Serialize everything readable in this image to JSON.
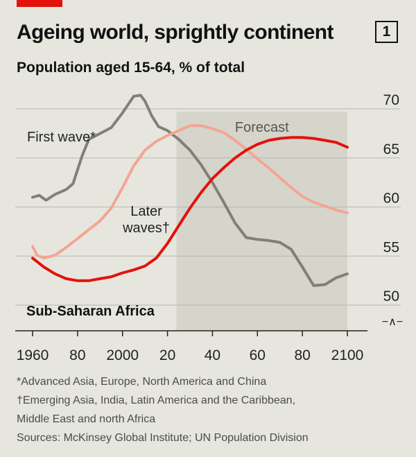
{
  "header": {
    "title": "Ageing world, sprightly continent",
    "chart_number": "1",
    "subtitle": "Population aged 15-64, % of total"
  },
  "colors": {
    "accent": "#e3120b",
    "first_wave": "#808078",
    "later_waves": "#f4a593",
    "sub_saharan_africa": "#e3120b",
    "forecast_band": "#d5d5cc",
    "background": "#e6e6df"
  },
  "notes": {
    "first_wave_note": "*Advanced Asia, Europe, North America and China",
    "later_waves_note_1": "†Emerging Asia, India, Latin America and the Caribbean,",
    "later_waves_note_2": "Middle East and north Africa",
    "sources": "Sources: McKinsey Global Institute; UN Population Division"
  },
  "chart_data": {
    "type": "line",
    "title": "Ageing world, sprightly continent",
    "subtitle": "Population aged 15-64, % of total",
    "x_ticks": [
      1960,
      1980,
      2000,
      2020,
      2040,
      2060,
      2080,
      2100
    ],
    "x_tick_labels": [
      "1960",
      "80",
      "2000",
      "20",
      "40",
      "60",
      "80",
      "2100"
    ],
    "y_ticks": [
      50,
      55,
      60,
      65,
      70
    ],
    "y_tick_labels": [
      "50",
      "55",
      "60",
      "65",
      "70"
    ],
    "xlim": [
      1960,
      2100
    ],
    "ylim": [
      48,
      70
    ],
    "axis_break_symbol": "−∧−",
    "grid": true,
    "forecast": {
      "label": "Forecast",
      "start": 2024,
      "end": 2100
    },
    "series": [
      {
        "name": "First wave*",
        "label_lines": [
          "First wave*"
        ],
        "color_key": "first_wave",
        "x": [
          1960,
          1963,
          1966,
          1970,
          1975,
          1978,
          1982,
          1985,
          1990,
          1995,
          2000,
          2005,
          2008,
          2010,
          2013,
          2016,
          2020,
          2025,
          2030,
          2035,
          2040,
          2045,
          2050,
          2055,
          2060,
          2065,
          2070,
          2075,
          2080,
          2085,
          2090,
          2095,
          2100
        ],
        "y": [
          60.0,
          60.2,
          59.7,
          60.3,
          60.8,
          61.4,
          64.2,
          65.9,
          66.5,
          67.1,
          68.6,
          70.3,
          70.4,
          69.8,
          68.3,
          67.2,
          66.8,
          65.9,
          64.8,
          63.3,
          61.5,
          59.5,
          57.4,
          55.9,
          55.7,
          55.6,
          55.4,
          54.7,
          52.9,
          51.0,
          51.1,
          51.8,
          52.2
        ]
      },
      {
        "name": "Later waves†",
        "label_lines": [
          "Later",
          "waves†"
        ],
        "color_key": "later_waves",
        "x": [
          1960,
          1962,
          1965,
          1970,
          1975,
          1980,
          1985,
          1990,
          1995,
          2000,
          2005,
          2010,
          2015,
          2020,
          2025,
          2030,
          2035,
          2040,
          2045,
          2050,
          2055,
          2060,
          2065,
          2070,
          2075,
          2080,
          2085,
          2090,
          2095,
          2100
        ],
        "y": [
          55.0,
          54.1,
          53.8,
          54.1,
          54.9,
          55.8,
          56.7,
          57.6,
          58.9,
          61.0,
          63.2,
          64.8,
          65.7,
          66.3,
          66.8,
          67.3,
          67.3,
          67.0,
          66.6,
          65.8,
          64.9,
          63.9,
          63.0,
          62.0,
          61.0,
          60.1,
          59.5,
          59.1,
          58.7,
          58.4
        ]
      },
      {
        "name": "Sub-Saharan Africa",
        "label_lines": [
          "Sub-Saharan Africa"
        ],
        "color_key": "sub_saharan_africa",
        "x": [
          1960,
          1965,
          1970,
          1975,
          1980,
          1985,
          1990,
          1995,
          2000,
          2005,
          2010,
          2015,
          2020,
          2025,
          2030,
          2035,
          2040,
          2045,
          2050,
          2055,
          2060,
          2065,
          2070,
          2075,
          2080,
          2085,
          2090,
          2095,
          2100
        ],
        "y": [
          53.8,
          52.9,
          52.2,
          51.7,
          51.5,
          51.5,
          51.7,
          51.9,
          52.3,
          52.6,
          53.0,
          53.8,
          55.3,
          57.1,
          58.9,
          60.5,
          61.9,
          63.0,
          64.0,
          64.8,
          65.4,
          65.8,
          66.0,
          66.1,
          66.1,
          66.0,
          65.8,
          65.6,
          65.1
        ]
      }
    ]
  }
}
